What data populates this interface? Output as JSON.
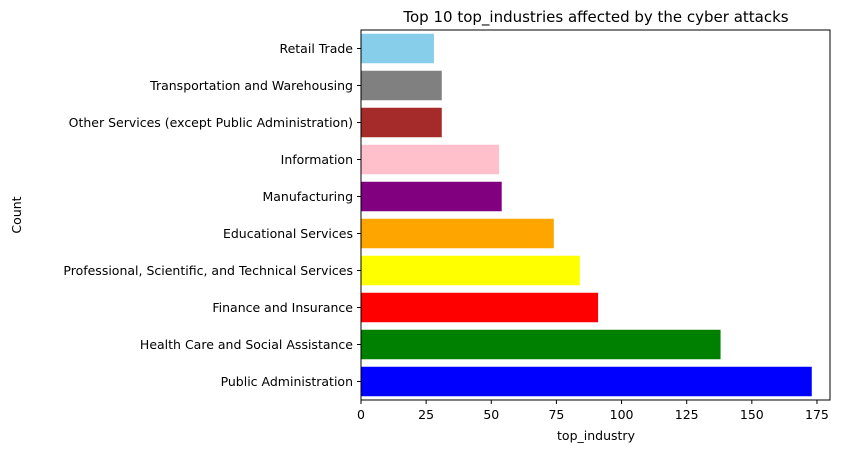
{
  "chart_data": {
    "type": "bar",
    "orientation": "horizontal",
    "title": "Top 10 top_industries affected by the cyber attacks",
    "xlabel": "top_industry",
    "ylabel": "Count",
    "xlim": [
      0,
      180
    ],
    "xticks": [
      0,
      25,
      50,
      75,
      100,
      125,
      150,
      175
    ],
    "grid": false,
    "categories": [
      "Public Administration",
      "Health Care and Social Assistance",
      "Finance and Insurance",
      "Professional, Scientific, and Technical Services",
      "Educational Services",
      "Manufacturing",
      "Information",
      "Other Services (except Public Administration)",
      "Transportation and Warehousing",
      "Retail Trade"
    ],
    "values": [
      173,
      138,
      91,
      84,
      74,
      54,
      53,
      31,
      31,
      28
    ],
    "colors": [
      "#0000ff",
      "#008000",
      "#ff0000",
      "#ffff00",
      "#ffa500",
      "#800080",
      "#ffc0cb",
      "#a52a2a",
      "#808080",
      "#87ceeb"
    ]
  }
}
